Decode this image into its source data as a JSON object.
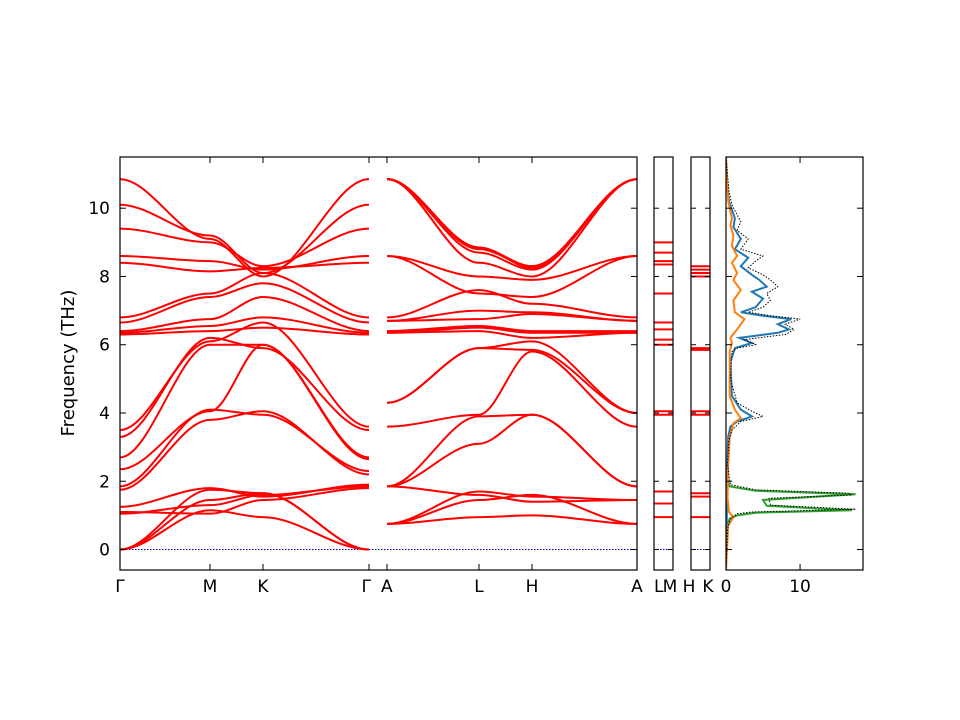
{
  "chart_data": {
    "type": "line",
    "ylabel": "Frequency (THz)",
    "ylim": [
      -0.6,
      11.5
    ],
    "yticks": [
      0,
      2,
      4,
      6,
      8,
      10
    ],
    "colors": {
      "bands": "#ff0000",
      "zero_line": "#0000cc",
      "dos_total": "#000000",
      "dos_blue": "#1f77b4",
      "dos_orange": "#ff7f0e",
      "dos_green": "#2ca02c"
    },
    "segments": [
      {
        "labels": [
          "Γ",
          "M",
          "K",
          "Γ"
        ],
        "label_positions": [
          0,
          0.577,
          0.911,
          1.577
        ]
      },
      {
        "labels": [
          "A",
          "L",
          "H",
          "A"
        ],
        "label_positions": [
          0,
          0.577,
          0.911,
          1.577
        ]
      },
      {
        "labels": [
          "L",
          "M"
        ],
        "label_positions": [
          0,
          1
        ]
      },
      {
        "labels": [
          "H",
          "K"
        ],
        "label_positions": [
          0,
          1
        ]
      }
    ],
    "first_panel_bottom_labels": [
      "Γ",
      "M",
      "K",
      "Γ",
      "A",
      "L",
      "H",
      "A"
    ],
    "short_panel_labels": [
      "L",
      "M",
      "H",
      "K"
    ],
    "band_start": [
      0,
      0,
      0,
      1.05,
      1.1,
      1.25,
      1.75,
      1.85,
      2.35,
      2.7,
      3.3,
      3.5,
      6.3,
      6.35,
      6.4,
      6.65,
      6.8,
      8.4,
      8.6,
      9.4,
      10.1,
      10.85
    ],
    "band_M": [
      1.75,
      1.45,
      1.15,
      1.3,
      1.05,
      1.8,
      3.8,
      4.1,
      4.05,
      6.0,
      6.2,
      6.1,
      6.4,
      6.55,
      6.75,
      7.4,
      7.5,
      8.15,
      8.45,
      9.0,
      9.2,
      9.1
    ],
    "band_K": [
      1.65,
      1.65,
      0.95,
      1.6,
      1.45,
      1.55,
      4.05,
      3.95,
      6.0,
      6.0,
      5.9,
      6.65,
      6.5,
      6.8,
      7.4,
      7.8,
      8.1,
      8.25,
      8.2,
      8.3,
      8.1,
      8.0
    ],
    "band_G2": [
      0,
      0,
      0,
      1.85,
      1.8,
      1.9,
      2.2,
      2.3,
      2.65,
      2.7,
      3.5,
      3.6,
      6.3,
      6.35,
      6.4,
      6.65,
      6.8,
      8.4,
      8.6,
      9.4,
      10.1,
      10.85
    ],
    "band_A": [
      0.75,
      0.75,
      0.75,
      1.85,
      1.85,
      1.85,
      3.6,
      4.3,
      4.3,
      6.35,
      6.35,
      6.4,
      6.7,
      6.7,
      6.8,
      8.6,
      8.6,
      10.85,
      10.85,
      10.85,
      10.85,
      10.85
    ],
    "band_L": [
      0.95,
      1.45,
      1.7,
      1.6,
      3.1,
      3.9,
      3.95,
      5.9,
      5.9,
      6.4,
      6.5,
      6.55,
      6.75,
      7.0,
      7.6,
      7.5,
      8.0,
      8.4,
      8.85,
      8.85,
      8.8,
      8.7
    ],
    "band_H": [
      1.0,
      1.6,
      1.55,
      1.4,
      3.95,
      3.95,
      5.8,
      5.85,
      6.1,
      6.2,
      6.35,
      6.4,
      6.9,
      6.95,
      7.2,
      7.4,
      7.9,
      8.0,
      8.25,
      8.3,
      8.3,
      8.2
    ],
    "band_A2": [
      0.75,
      0.75,
      1.45,
      1.45,
      1.85,
      1.85,
      3.6,
      4.0,
      4.0,
      6.35,
      6.35,
      6.4,
      6.7,
      6.7,
      6.8,
      8.6,
      8.6,
      10.85,
      10.85,
      10.85,
      10.85,
      10.85
    ],
    "lm_levels": [
      0.95,
      1.35,
      1.7,
      3.95,
      4.05,
      6.0,
      6.15,
      6.45,
      6.65,
      7.5,
      8.35,
      8.45,
      8.7,
      9.0
    ],
    "hk_levels": [
      0.95,
      1.55,
      1.65,
      3.95,
      4.05,
      5.85,
      5.9,
      8.0,
      8.1,
      8.2,
      8.3
    ],
    "dos": {
      "xlim": [
        0,
        18.5
      ],
      "xticks": [
        0,
        10
      ],
      "total": [
        [
          0,
          -0.6
        ],
        [
          0.2,
          0.6
        ],
        [
          0.6,
          0.9
        ],
        [
          1.5,
          1.05
        ],
        [
          3.5,
          1.1
        ],
        [
          17.5,
          1.18
        ],
        [
          6,
          1.3
        ],
        [
          5.8,
          1.5
        ],
        [
          17,
          1.6
        ],
        [
          16.5,
          1.65
        ],
        [
          4,
          1.75
        ],
        [
          0.6,
          1.9
        ],
        [
          0.2,
          2.5
        ],
        [
          0.4,
          3.2
        ],
        [
          0.8,
          3.5
        ],
        [
          2,
          3.75
        ],
        [
          5,
          3.9
        ],
        [
          3.5,
          4.05
        ],
        [
          1.5,
          4.3
        ],
        [
          0.6,
          5.0
        ],
        [
          0.8,
          5.8
        ],
        [
          1.5,
          5.9
        ],
        [
          4,
          6.0
        ],
        [
          2.5,
          6.15
        ],
        [
          8,
          6.3
        ],
        [
          9.2,
          6.45
        ],
        [
          8,
          6.6
        ],
        [
          10,
          6.75
        ],
        [
          6,
          6.85
        ],
        [
          3,
          6.95
        ],
        [
          5,
          7.1
        ],
        [
          6,
          7.3
        ],
        [
          5.5,
          7.5
        ],
        [
          7,
          7.7
        ],
        [
          6,
          7.9
        ],
        [
          5,
          8.05
        ],
        [
          3,
          8.25
        ],
        [
          4,
          8.45
        ],
        [
          5,
          8.6
        ],
        [
          2,
          8.8
        ],
        [
          3,
          9.1
        ],
        [
          1.5,
          9.35
        ],
        [
          2,
          9.6
        ],
        [
          0.8,
          10.1
        ],
        [
          0.4,
          10.5
        ],
        [
          0.2,
          11.0
        ],
        [
          0,
          11.5
        ]
      ],
      "blue": [
        [
          0,
          -0.6
        ],
        [
          0.2,
          2.5
        ],
        [
          0.3,
          3.3
        ],
        [
          0.6,
          3.6
        ],
        [
          1.5,
          3.75
        ],
        [
          3.5,
          3.9
        ],
        [
          2,
          4.1
        ],
        [
          0.8,
          4.5
        ],
        [
          0.6,
          5.5
        ],
        [
          1.2,
          5.9
        ],
        [
          3.5,
          6.05
        ],
        [
          1.8,
          6.2
        ],
        [
          7,
          6.35
        ],
        [
          8.5,
          6.45
        ],
        [
          7,
          6.6
        ],
        [
          8.8,
          6.75
        ],
        [
          5,
          6.85
        ],
        [
          2,
          6.95
        ],
        [
          4,
          7.1
        ],
        [
          5,
          7.35
        ],
        [
          3.5,
          7.55
        ],
        [
          5.5,
          7.7
        ],
        [
          4.5,
          7.9
        ],
        [
          3.5,
          8.05
        ],
        [
          2,
          8.3
        ],
        [
          3,
          8.55
        ],
        [
          1.2,
          8.8
        ],
        [
          2,
          9.1
        ],
        [
          1,
          9.45
        ],
        [
          1.2,
          9.7
        ],
        [
          0.4,
          10.2
        ],
        [
          0.1,
          10.8
        ],
        [
          0,
          11.5
        ]
      ],
      "orange": [
        [
          0,
          -0.6
        ],
        [
          0.3,
          0.7
        ],
        [
          1,
          0.95
        ],
        [
          0.4,
          1.1
        ],
        [
          0.2,
          1.5
        ],
        [
          0.3,
          2.5
        ],
        [
          0.5,
          3.3
        ],
        [
          1,
          3.7
        ],
        [
          2,
          3.85
        ],
        [
          1.2,
          4.1
        ],
        [
          0.5,
          4.5
        ],
        [
          0.5,
          5.8
        ],
        [
          0.8,
          6.05
        ],
        [
          0.6,
          6.2
        ],
        [
          1.5,
          6.45
        ],
        [
          2.5,
          6.75
        ],
        [
          1.2,
          6.95
        ],
        [
          1,
          7.3
        ],
        [
          2,
          7.6
        ],
        [
          1,
          7.9
        ],
        [
          1.5,
          8.1
        ],
        [
          0.8,
          8.4
        ],
        [
          1.5,
          8.6
        ],
        [
          0.8,
          8.9
        ],
        [
          1,
          9.2
        ],
        [
          0.6,
          9.5
        ],
        [
          0.8,
          9.7
        ],
        [
          0.3,
          10.2
        ],
        [
          0,
          11.5
        ]
      ],
      "green": [
        [
          0,
          -0.6
        ],
        [
          0.1,
          0.7
        ],
        [
          0.5,
          0.9
        ],
        [
          1.5,
          1.0
        ],
        [
          4,
          1.08
        ],
        [
          17,
          1.15
        ],
        [
          5.5,
          1.28
        ],
        [
          5,
          1.45
        ],
        [
          17.5,
          1.62
        ],
        [
          4,
          1.72
        ],
        [
          0.5,
          1.85
        ],
        [
          0.1,
          2.1
        ],
        [
          0,
          2.5
        ]
      ]
    }
  }
}
